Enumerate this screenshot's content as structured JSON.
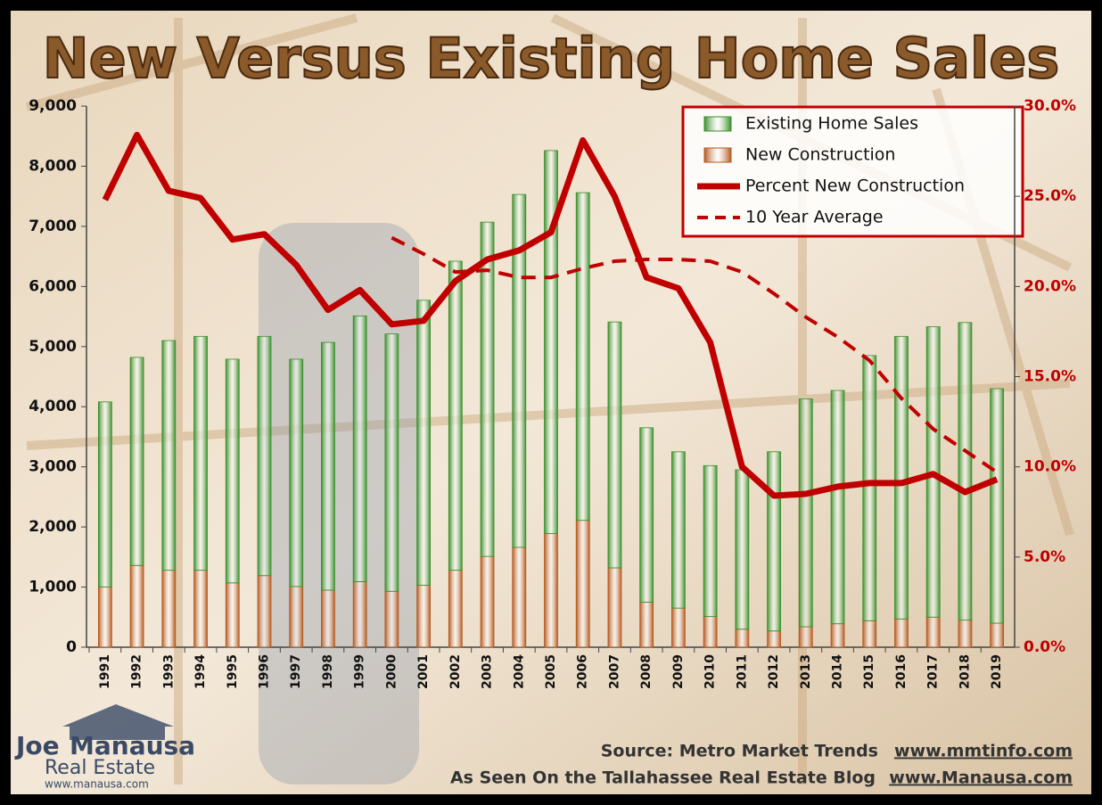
{
  "chart_data": {
    "type": "bar",
    "title": "New Versus Existing Home Sales",
    "categories": [
      "1991",
      "1992",
      "1993",
      "1994",
      "1995",
      "1996",
      "1997",
      "1998",
      "1999",
      "2000",
      "2001",
      "2002",
      "2003",
      "2004",
      "2005",
      "2006",
      "2007",
      "2008",
      "2009",
      "2010",
      "2011",
      "2012",
      "2013",
      "2014",
      "2015",
      "2016",
      "2017",
      "2018",
      "2019"
    ],
    "series": [
      {
        "name": "Existing Home Sales",
        "type": "bar",
        "color": "#3a8f2a",
        "values": [
          3080,
          3460,
          3820,
          3890,
          3720,
          3980,
          3780,
          4120,
          4420,
          4280,
          4740,
          5140,
          5560,
          5870,
          6370,
          5450,
          4090,
          2900,
          2600,
          2510,
          2650,
          2980,
          3790,
          3880,
          4410,
          4700,
          4830,
          4950,
          3900
        ]
      },
      {
        "name": "New Construction",
        "type": "bar",
        "color": "#b5581e",
        "values": [
          1000,
          1360,
          1280,
          1280,
          1070,
          1190,
          1010,
          950,
          1090,
          930,
          1030,
          1280,
          1510,
          1660,
          1890,
          2110,
          1320,
          750,
          650,
          510,
          300,
          270,
          340,
          390,
          440,
          470,
          500,
          450,
          400
        ]
      },
      {
        "name": "Percent New Construction",
        "type": "line",
        "axis": "y2",
        "color": "#c00000",
        "dashed": false,
        "values": [
          24.8,
          28.4,
          25.3,
          24.9,
          22.6,
          22.9,
          21.2,
          18.7,
          19.8,
          17.9,
          18.1,
          20.3,
          21.5,
          22.0,
          23.0,
          28.1,
          25.0,
          20.5,
          19.9,
          16.9,
          10.0,
          8.4,
          8.5,
          8.9,
          9.1,
          9.1,
          9.6,
          8.6,
          9.3
        ]
      },
      {
        "name": "10 Year Average",
        "type": "line",
        "axis": "y2",
        "color": "#c00000",
        "dashed": true,
        "values": [
          null,
          null,
          null,
          null,
          null,
          null,
          null,
          null,
          null,
          22.7,
          21.8,
          20.8,
          20.9,
          20.5,
          20.5,
          21.0,
          21.4,
          21.5,
          21.5,
          21.4,
          20.8,
          19.6,
          18.3,
          17.2,
          15.9,
          13.8,
          12.1,
          10.9,
          9.7
        ]
      }
    ],
    "ylim": [
      0,
      9000
    ],
    "yticks": [
      0,
      {
        "value": 1000,
        "label": "1,000"
      },
      {
        "value": 2000,
        "label": "2,000"
      },
      {
        "value": 3000,
        "label": "3,000"
      },
      {
        "value": 4000,
        "label": "4,000"
      },
      {
        "value": 5000,
        "label": "5,000"
      },
      {
        "value": 6000,
        "label": "6,000"
      },
      {
        "value": 7000,
        "label": "7,000"
      },
      {
        "value": 8000,
        "label": "8,000"
      },
      {
        "value": 9000,
        "label": "9,000"
      }
    ],
    "y2lim": [
      0,
      30
    ],
    "y2ticks": [
      {
        "value": 0,
        "label": "0.0%"
      },
      {
        "value": 5,
        "label": "5.0%"
      },
      {
        "value": 10,
        "label": "10.0%"
      },
      {
        "value": 15,
        "label": "15.0%"
      },
      {
        "value": 20,
        "label": "20.0%"
      },
      {
        "value": 25,
        "label": "25.0%"
      },
      {
        "value": 30,
        "label": "30.0%"
      }
    ],
    "legend": "upper right",
    "source": "Source: Metro Market Trends",
    "source_url": "www.mmtinfo.com",
    "blog": "As Seen On the Tallahassee Real Estate Blog",
    "blog_url": "www.Manausa.com",
    "logo": {
      "first": "Joe",
      "last": "Manausa",
      "line2": "Real Estate",
      "url": "www.manausa.com"
    }
  }
}
